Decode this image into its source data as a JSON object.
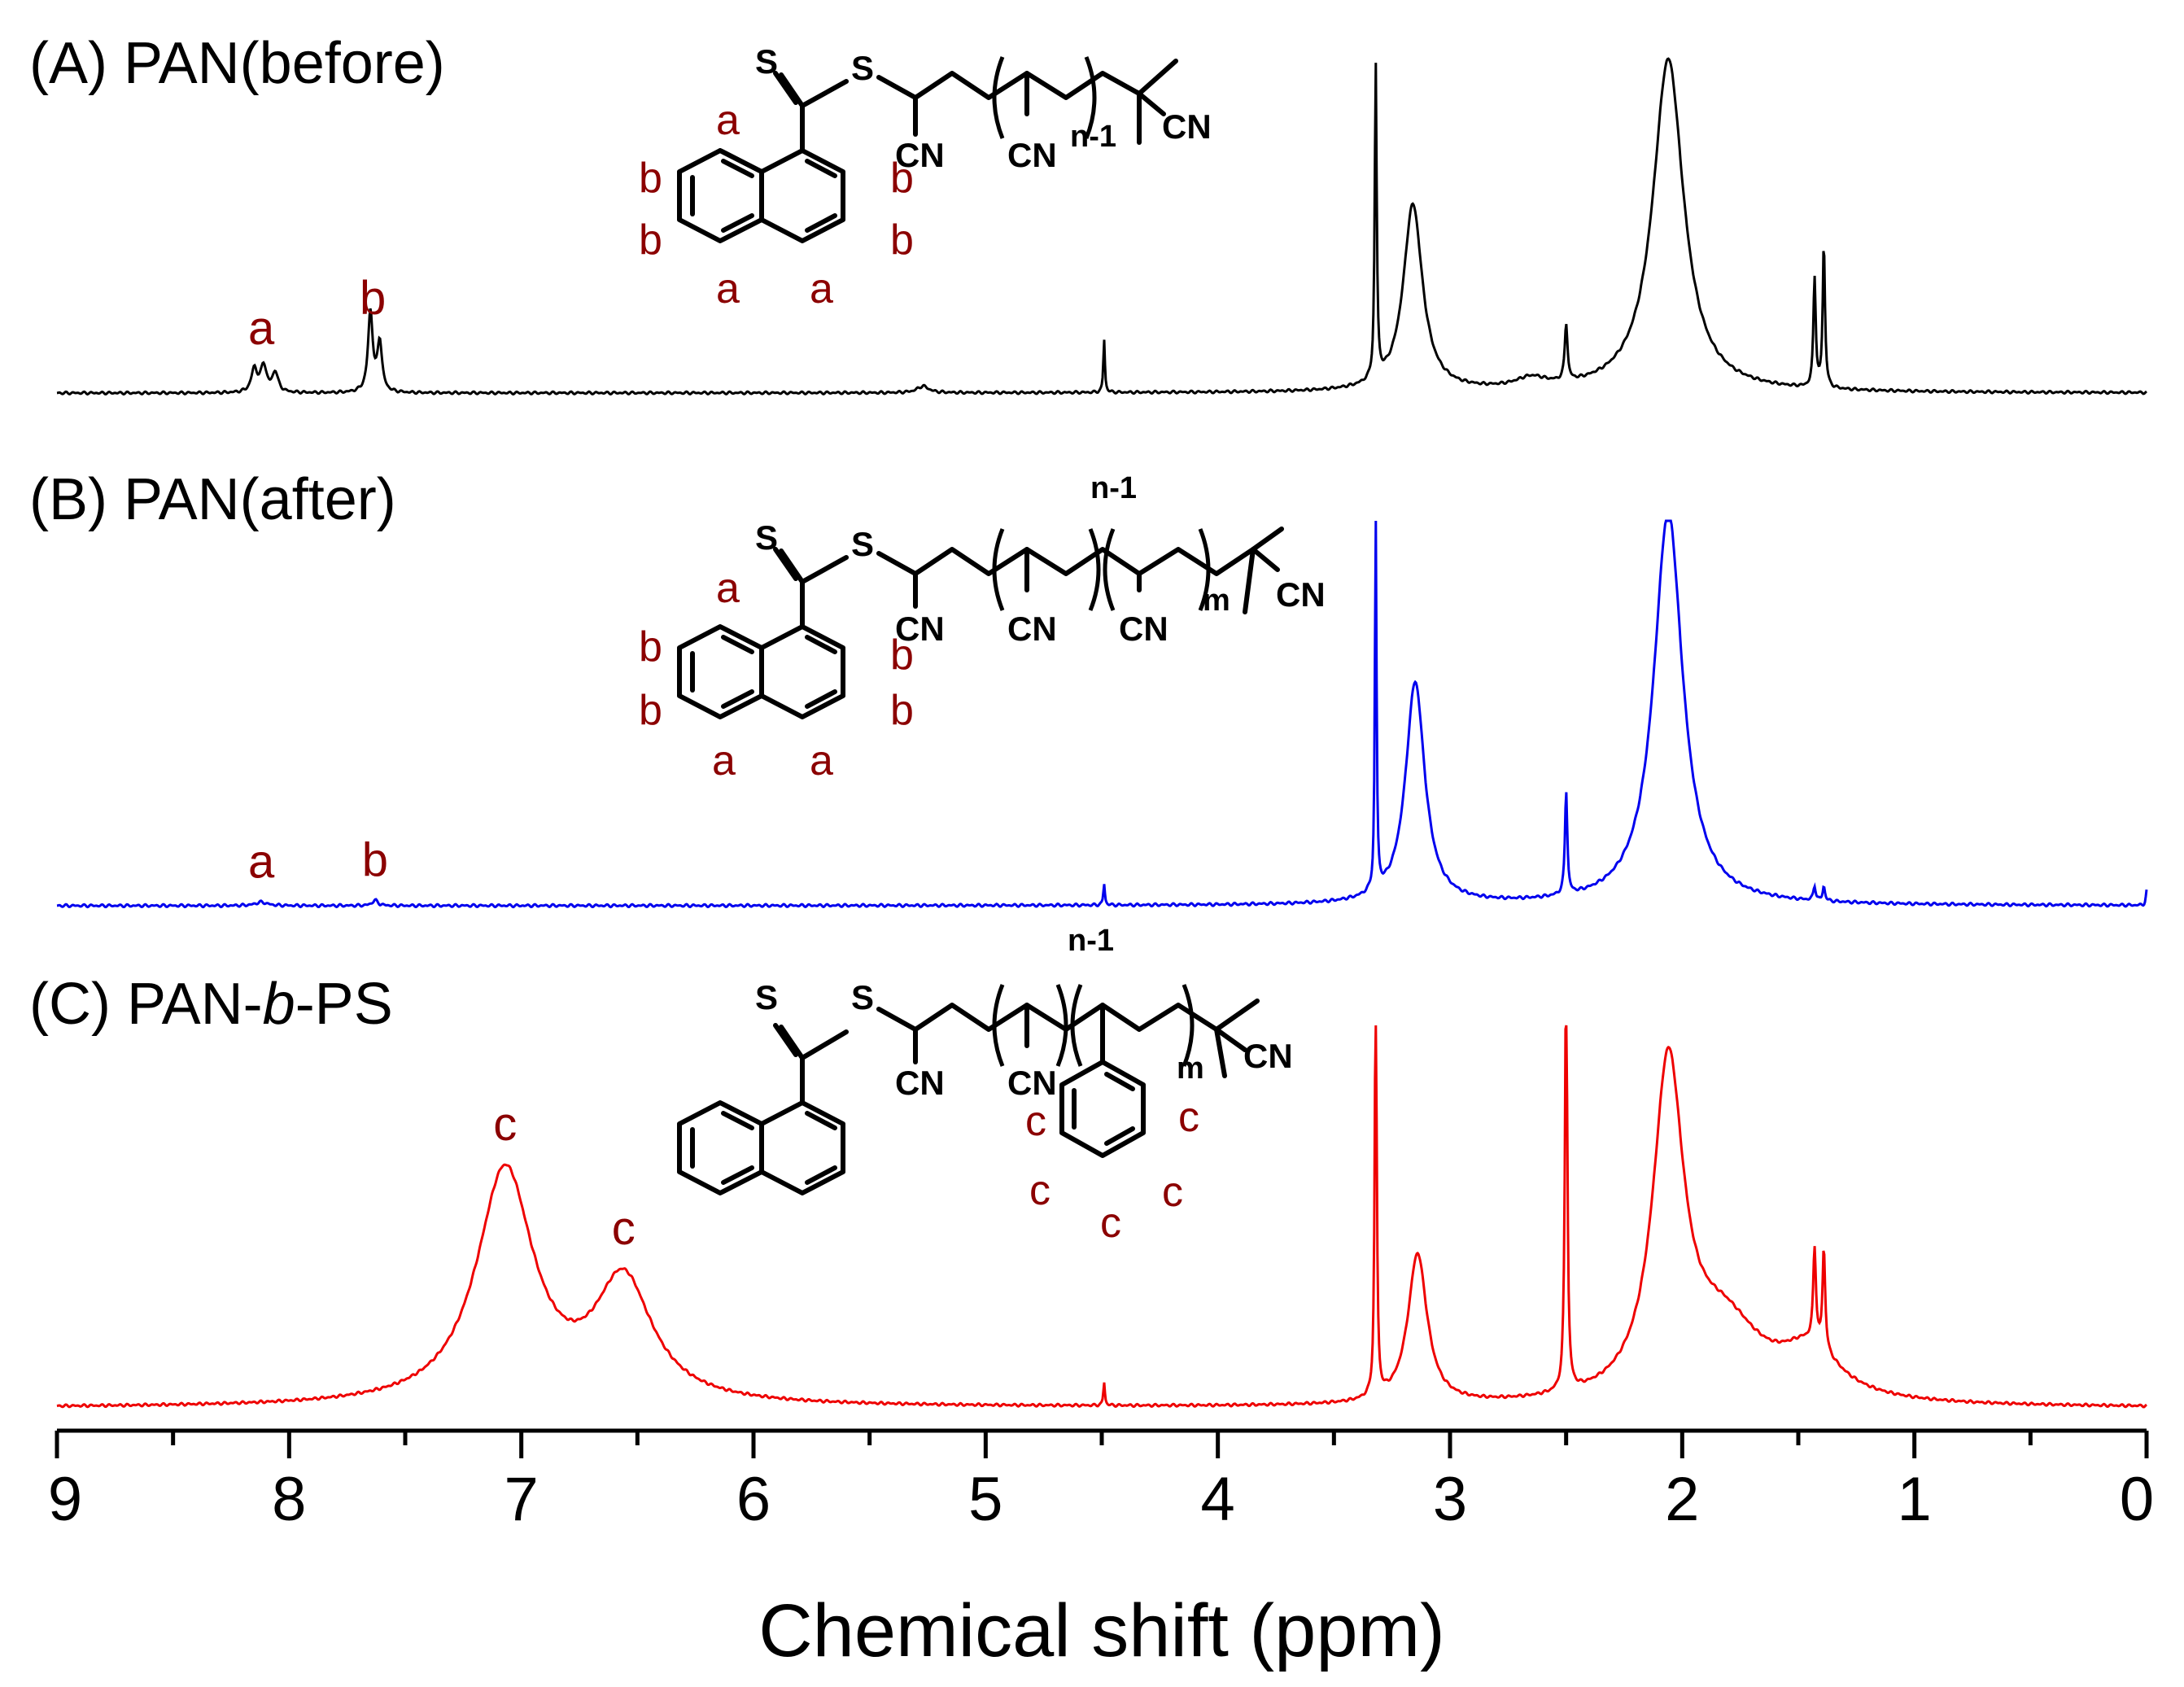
{
  "chart_data": {
    "type": "line",
    "xlabel": "Chemical shift (ppm)",
    "xlim": [
      9,
      0
    ],
    "x_reversed": true,
    "x_ticks": [
      "9",
      "8",
      "7",
      "6",
      "5",
      "4",
      "3",
      "2",
      "1",
      "0"
    ],
    "ylabel": "",
    "series": [
      {
        "name": "(A) PAN(before)",
        "label": "(A) PAN(before)",
        "color": "#000000",
        "baseline": "flat",
        "peaks": [
          {
            "ppm": 8.15,
            "height": 0.07,
            "width": 0.015
          },
          {
            "ppm": 8.11,
            "height": 0.08,
            "width": 0.015
          },
          {
            "ppm": 8.06,
            "height": 0.06,
            "width": 0.015
          },
          {
            "ppm": 7.65,
            "height": 0.24,
            "width": 0.012
          },
          {
            "ppm": 7.61,
            "height": 0.15,
            "width": 0.012
          },
          {
            "ppm": 5.27,
            "height": 0.02,
            "width": 0.03
          },
          {
            "ppm": 4.49,
            "height": 0.16,
            "width": 0.004
          },
          {
            "ppm": 3.32,
            "height": 0.94,
            "width": 0.005
          },
          {
            "ppm": 3.16,
            "height": 0.56,
            "width": 0.05
          },
          {
            "ppm": 2.65,
            "height": 0.03,
            "width": 0.08
          },
          {
            "ppm": 2.5,
            "height": 0.17,
            "width": 0.007
          },
          {
            "ppm": 2.06,
            "height": 1.0,
            "width": 0.08
          },
          {
            "ppm": 1.43,
            "height": 0.33,
            "width": 0.006
          },
          {
            "ppm": 1.39,
            "height": 0.43,
            "width": 0.006
          }
        ],
        "peak_labels": [
          {
            "text": "a",
            "ppm": 8.12
          },
          {
            "text": "b",
            "ppm": 7.64
          }
        ]
      },
      {
        "name": "(B) PAN(after)",
        "label": "(B) PAN(after)",
        "color": "#0000ee",
        "baseline": "flat",
        "peaks": [
          {
            "ppm": 8.12,
            "height": 0.01,
            "width": 0.03
          },
          {
            "ppm": 7.63,
            "height": 0.015,
            "width": 0.015
          },
          {
            "ppm": 4.49,
            "height": 0.06,
            "width": 0.004
          },
          {
            "ppm": 3.32,
            "height": 1.1,
            "width": 0.004
          },
          {
            "ppm": 3.15,
            "height": 0.62,
            "width": 0.05
          },
          {
            "ppm": 2.5,
            "height": 0.29,
            "width": 0.006
          },
          {
            "ppm": 2.06,
            "height": 1.1,
            "width": 0.075
          },
          {
            "ppm": 1.43,
            "height": 0.04,
            "width": 0.006
          },
          {
            "ppm": 1.39,
            "height": 0.04,
            "width": 0.006
          },
          {
            "ppm": 0.0,
            "height": 0.04,
            "width": 0.004
          }
        ],
        "peak_labels": [
          {
            "text": "a",
            "ppm": 8.12
          },
          {
            "text": "b",
            "ppm": 7.63
          }
        ]
      },
      {
        "name": "(C) PAN-b-PS",
        "label_prefix": "(C) PAN-",
        "label_italic": "b",
        "label_suffix": "-PS",
        "color": "#ee0000",
        "baseline": "flat",
        "peaks": [
          {
            "ppm": 7.07,
            "height": 0.7,
            "width": 0.15
          },
          {
            "ppm": 6.56,
            "height": 0.36,
            "width": 0.15
          },
          {
            "ppm": 4.49,
            "height": 0.07,
            "width": 0.004
          },
          {
            "ppm": 3.32,
            "height": 1.3,
            "width": 0.005
          },
          {
            "ppm": 3.14,
            "height": 0.45,
            "width": 0.05
          },
          {
            "ppm": 2.5,
            "height": 1.3,
            "width": 0.006
          },
          {
            "ppm": 2.06,
            "height": 0.98,
            "width": 0.08
          },
          {
            "ppm": 1.82,
            "height": 0.22,
            "width": 0.2
          },
          {
            "ppm": 1.43,
            "height": 0.28,
            "width": 0.007
          },
          {
            "ppm": 1.39,
            "height": 0.3,
            "width": 0.007
          },
          {
            "ppm": 1.45,
            "height": 0.14,
            "width": 0.15
          }
        ],
        "peak_labels": [
          {
            "text": "c",
            "ppm": 7.07
          },
          {
            "text": "c",
            "ppm": 6.56
          }
        ]
      }
    ]
  },
  "structures": {
    "A": {
      "atoms": {
        "S_thione": "S",
        "S_thio": "S",
        "cn1": "CN",
        "cn2": "CN",
        "cn_end": "CN",
        "repeat": "n-1"
      },
      "assignments": [
        "a",
        "a",
        "a",
        "b",
        "b",
        "b",
        "b"
      ]
    },
    "B": {
      "atoms": {
        "S_thione": "S",
        "S_thio": "S",
        "cn1": "CN",
        "cn2": "CN",
        "cn3": "CN",
        "cn_end": "CN",
        "repeat1": "n-1",
        "repeat2": "m"
      },
      "assignments": [
        "a",
        "a",
        "a",
        "b",
        "b",
        "b",
        "b"
      ]
    },
    "C": {
      "atoms": {
        "S_thione": "S",
        "S_thio": "S",
        "cn1": "CN",
        "cn2": "CN",
        "cn_end": "CN",
        "repeat1": "n-1",
        "repeat2": "m"
      },
      "assignments": [
        "c",
        "c",
        "c",
        "c",
        "c"
      ]
    }
  }
}
